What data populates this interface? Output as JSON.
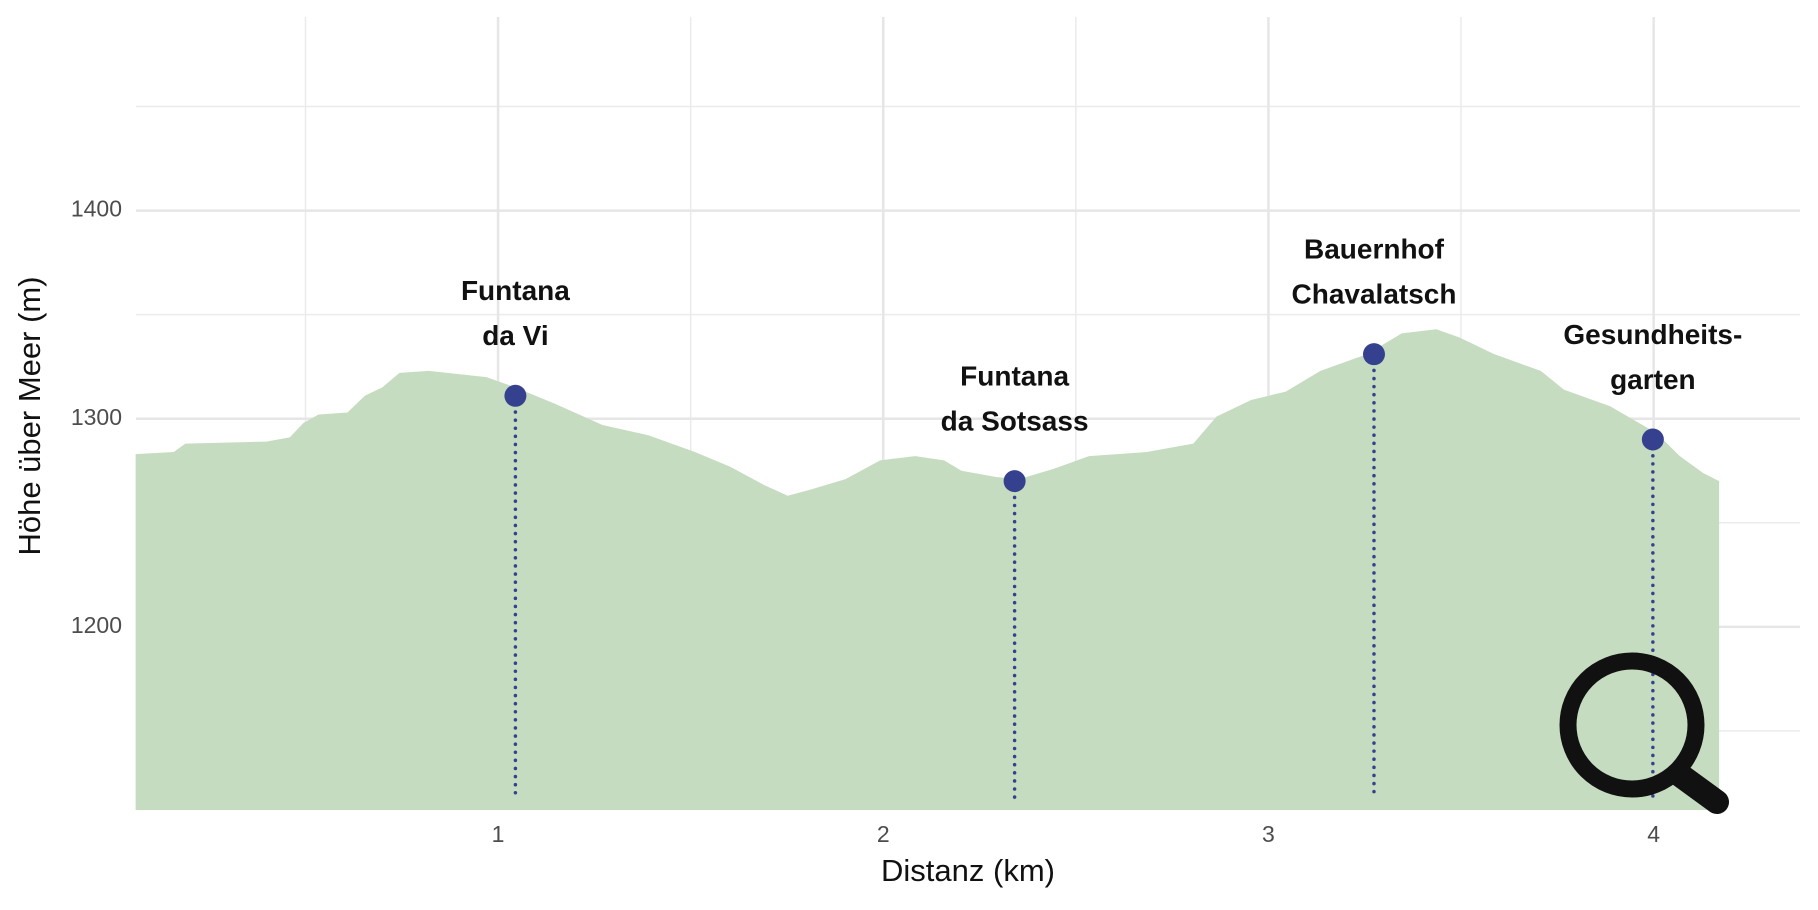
{
  "chart_data": {
    "type": "area",
    "x_label": "Distanz (km)",
    "y_label": "Höhe über Meer (m)",
    "xlim": [
      0.06,
      4.38
    ],
    "ylim": [
      1112,
      1493
    ],
    "xticks": [
      1,
      2,
      3,
      4
    ],
    "yticks": [
      1200,
      1300,
      1400
    ],
    "xminorticks": [
      0.5,
      1.5,
      2.5,
      3.5
    ],
    "yminorticks": [
      1150,
      1250,
      1350,
      1450
    ],
    "grid": true,
    "color": "#c6dcc1",
    "x": [
      0.059,
      0.158,
      0.188,
      0.398,
      0.459,
      0.495,
      0.534,
      0.609,
      0.654,
      0.699,
      0.744,
      0.82,
      0.97,
      1.045,
      1.15,
      1.271,
      1.391,
      1.511,
      1.602,
      1.692,
      1.752,
      1.812,
      1.902,
      1.992,
      2.083,
      2.158,
      2.203,
      2.293,
      2.353,
      2.444,
      2.534,
      2.684,
      2.805,
      2.865,
      2.955,
      3.045,
      3.135,
      3.256,
      3.346,
      3.436,
      3.496,
      3.586,
      3.707,
      3.767,
      3.887,
      4.008,
      4.068,
      4.128,
      4.17
    ],
    "values": [
      1283,
      1284,
      1288,
      1289,
      1291,
      1298,
      1302,
      1303,
      1311,
      1315,
      1322,
      1323,
      1320,
      1315,
      1307,
      1297,
      1292,
      1284,
      1277,
      1268,
      1263,
      1266,
      1271,
      1280,
      1282,
      1280,
      1275,
      1272,
      1271,
      1276,
      1282,
      1284,
      1288,
      1301,
      1309,
      1313,
      1323,
      1331,
      1341,
      1343,
      1339,
      1331,
      1323,
      1314,
      1306,
      1293,
      1282,
      1274,
      1270
    ],
    "points": {
      "color": "#35418f",
      "x": [
        1.045,
        2.341,
        3.274,
        3.998
      ],
      "values": [
        1311,
        1270,
        1331,
        1290
      ],
      "labels": [
        [
          "Funtana",
          "da Vi"
        ],
        [
          "Funtana",
          "da Sotsass"
        ],
        [
          "Bauernhof",
          "Chavalatsch"
        ],
        [
          "Gesundheits-",
          "garten"
        ]
      ]
    }
  }
}
